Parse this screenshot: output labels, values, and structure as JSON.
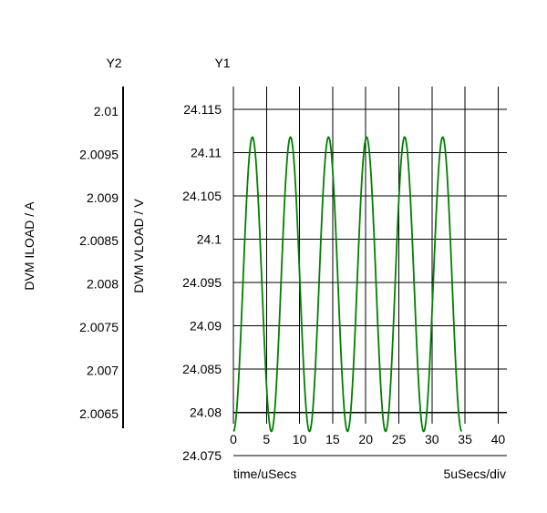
{
  "chart_data": {
    "type": "line",
    "y1_title": "Y1",
    "y2_title": "Y2",
    "y1_label": "DVM VLOAD / V",
    "y2_label": "DVM ILOAD / A",
    "xlabel": "time/uSecs",
    "x_scale_label": "5uSecs/div",
    "xlim": [
      0,
      40
    ],
    "x_ticks": [
      "0",
      "5",
      "10",
      "15",
      "20",
      "25",
      "30",
      "35",
      "40"
    ],
    "y1_ticks": [
      "24.115",
      "24.11",
      "24.105",
      "24.1",
      "24.095",
      "24.09",
      "24.085",
      "24.08",
      "24.075"
    ],
    "y2_ticks": [
      "2.01",
      "2.0095",
      "2.009",
      "2.0085",
      "2.008",
      "2.0075",
      "2.007",
      "2.0065"
    ],
    "grid": true,
    "series": [
      {
        "color": "#008000",
        "period_us": 5.75,
        "peak_v": 24.1118,
        "trough_v": 24.0778,
        "x_start_us": 0,
        "x_end_us": 34.5
      }
    ]
  }
}
